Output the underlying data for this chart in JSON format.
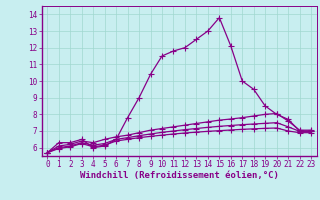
{
  "xlabel": "Windchill (Refroidissement éolien,°C)",
  "bg_color": "#c8eef0",
  "line_color": "#880088",
  "xlim": [
    -0.5,
    23.5
  ],
  "ylim": [
    5.5,
    14.5
  ],
  "xticks": [
    0,
    1,
    2,
    3,
    4,
    5,
    6,
    7,
    8,
    9,
    10,
    11,
    12,
    13,
    14,
    15,
    16,
    17,
    18,
    19,
    20,
    21,
    22,
    23
  ],
  "yticks": [
    6,
    7,
    8,
    9,
    10,
    11,
    12,
    13,
    14
  ],
  "line1_x": [
    0,
    1,
    2,
    3,
    4,
    5,
    6,
    7,
    8,
    9,
    10,
    11,
    12,
    13,
    14,
    15,
    16,
    17,
    18,
    19,
    20,
    21,
    22,
    23
  ],
  "line1_y": [
    5.7,
    6.3,
    6.3,
    6.5,
    6.0,
    6.1,
    6.5,
    7.8,
    9.0,
    10.4,
    11.5,
    11.8,
    12.0,
    12.5,
    13.0,
    13.8,
    12.1,
    10.0,
    9.5,
    8.5,
    8.0,
    7.7,
    7.0,
    7.0
  ],
  "line2_x": [
    0,
    1,
    2,
    3,
    4,
    5,
    6,
    7,
    8,
    9,
    10,
    11,
    12,
    13,
    14,
    15,
    16,
    17,
    18,
    19,
    20,
    21,
    22,
    23
  ],
  "line2_y": [
    5.7,
    6.1,
    6.2,
    6.4,
    6.3,
    6.5,
    6.65,
    6.75,
    6.9,
    7.05,
    7.15,
    7.25,
    7.35,
    7.45,
    7.55,
    7.65,
    7.72,
    7.8,
    7.9,
    8.0,
    8.05,
    7.6,
    7.05,
    7.05
  ],
  "line3_x": [
    0,
    1,
    2,
    3,
    4,
    5,
    6,
    7,
    8,
    9,
    10,
    11,
    12,
    13,
    14,
    15,
    16,
    17,
    18,
    19,
    20,
    21,
    22,
    23
  ],
  "line3_y": [
    5.7,
    6.0,
    6.1,
    6.3,
    6.15,
    6.25,
    6.5,
    6.6,
    6.72,
    6.82,
    6.92,
    7.0,
    7.08,
    7.15,
    7.22,
    7.28,
    7.33,
    7.38,
    7.42,
    7.46,
    7.5,
    7.25,
    6.98,
    6.98
  ],
  "line4_x": [
    0,
    1,
    2,
    3,
    4,
    5,
    6,
    7,
    8,
    9,
    10,
    11,
    12,
    13,
    14,
    15,
    16,
    17,
    18,
    19,
    20,
    21,
    22,
    23
  ],
  "line4_y": [
    5.7,
    5.95,
    6.05,
    6.25,
    6.05,
    6.15,
    6.4,
    6.5,
    6.6,
    6.68,
    6.75,
    6.82,
    6.88,
    6.93,
    6.98,
    7.02,
    7.06,
    7.1,
    7.13,
    7.16,
    7.18,
    7.0,
    6.9,
    6.9
  ],
  "grid_color": "#a0d8d0",
  "marker": "+",
  "markersize": 4,
  "linewidth": 0.9,
  "xlabel_fontsize": 6.5,
  "tick_fontsize": 5.5
}
